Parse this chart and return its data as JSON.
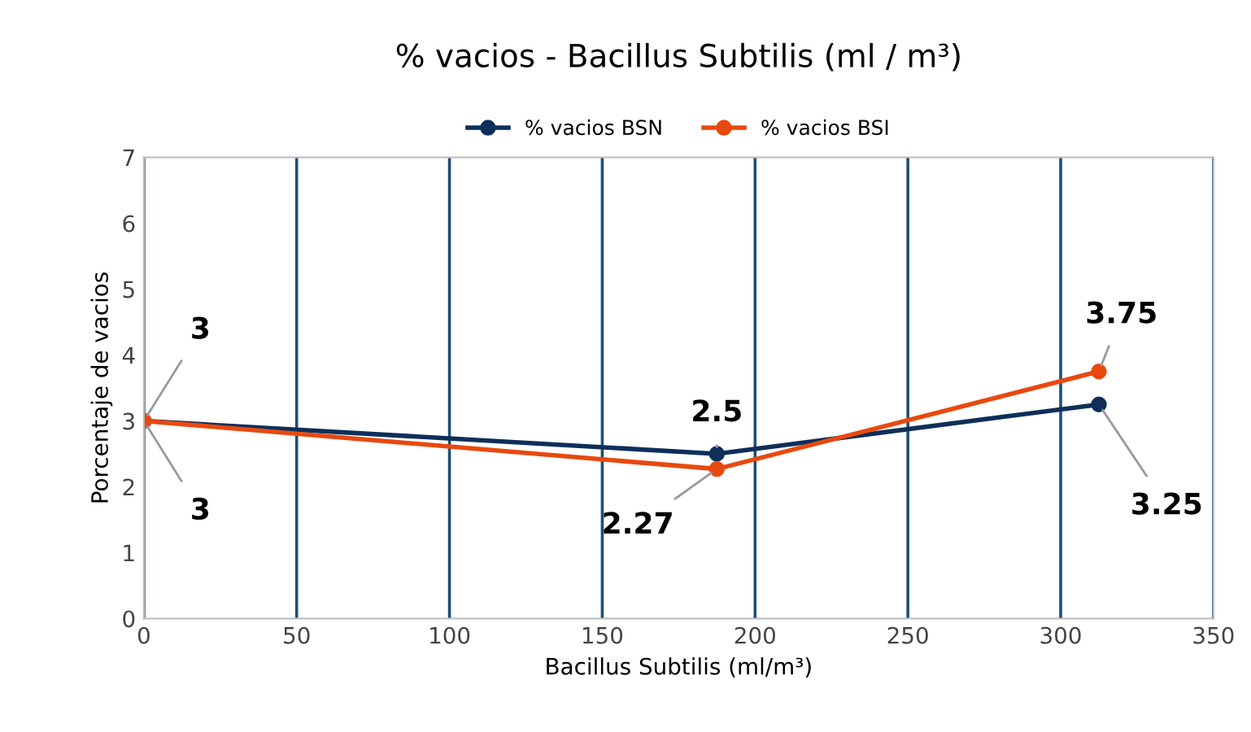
{
  "chart_data": {
    "type": "line",
    "title": "% vacios - Bacillus Subtilis (ml / m³)",
    "xlabel": "Bacillus Subtilis (ml/m³)",
    "ylabel": "Porcentaje de vacios",
    "x": [
      0,
      187.5,
      312.5
    ],
    "series": [
      {
        "name": "% vacios BSN",
        "color": "#0d2f5a",
        "values": [
          3,
          2.5,
          3.25
        ]
      },
      {
        "name": "% vacios BSI",
        "color": "#e8490f",
        "values": [
          3,
          2.27,
          3.75
        ]
      }
    ],
    "xlim": [
      0,
      350
    ],
    "xticks": [
      0,
      50,
      100,
      150,
      200,
      250,
      300,
      350
    ],
    "ylim": [
      0,
      7
    ],
    "yticks": [
      0,
      1,
      2,
      3,
      4,
      5,
      6,
      7
    ],
    "grid": "x",
    "legend": "top",
    "marker": "circle",
    "data_labels": true
  }
}
